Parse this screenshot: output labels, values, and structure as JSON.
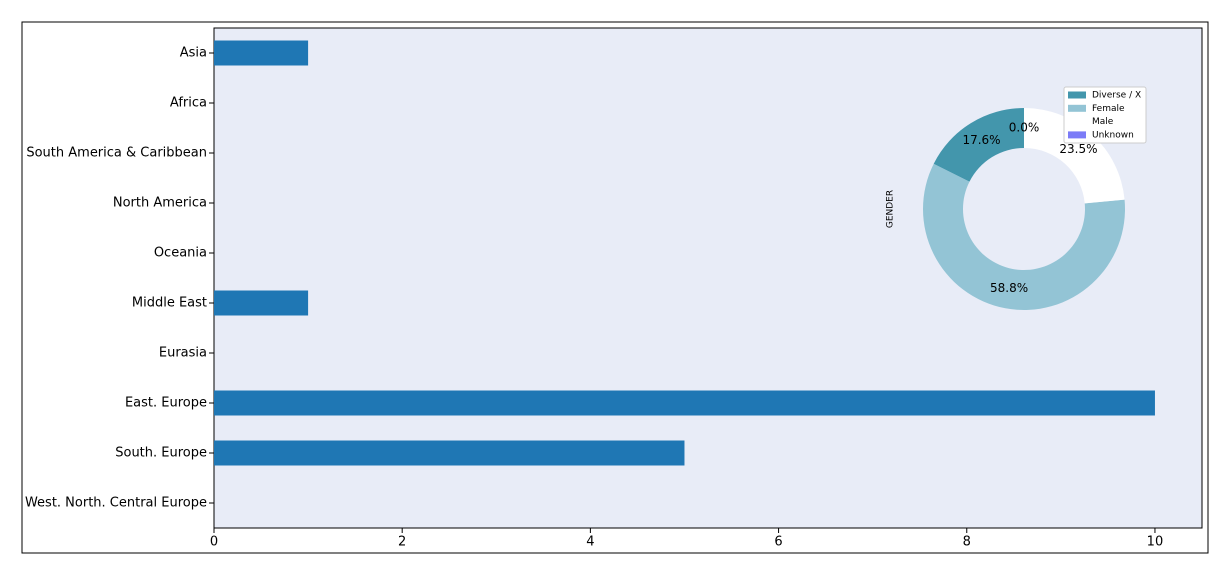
{
  "chart_data": [
    {
      "type": "barh",
      "categories": [
        "Asia",
        "Africa",
        "South America & Caribbean",
        "North America",
        "Oceania",
        "Middle East",
        "Eurasia",
        "East. Europe",
        "South. Europe",
        "West. North. Central Europe"
      ],
      "values": [
        1,
        0,
        0,
        0,
        0,
        1,
        0,
        10,
        5,
        0
      ],
      "color": "#1f77b4",
      "xlim": [
        0,
        10.5
      ],
      "xticks": [
        0,
        2,
        4,
        6,
        8,
        10
      ]
    },
    {
      "type": "donut",
      "ylabel": "GENDER",
      "labels": [
        "Diverse / X",
        "Female",
        "Male",
        "Unknown"
      ],
      "values": [
        17.6,
        58.8,
        23.5,
        0.0
      ],
      "value_labels": [
        "17.6%",
        "58.8%",
        "23.5%",
        "0.0%"
      ],
      "colors": [
        "#4396ac",
        "#93c4d5",
        "#ffffff",
        "#7b7bf7"
      ],
      "start_angle": 90,
      "counterclockwise": true
    }
  ]
}
